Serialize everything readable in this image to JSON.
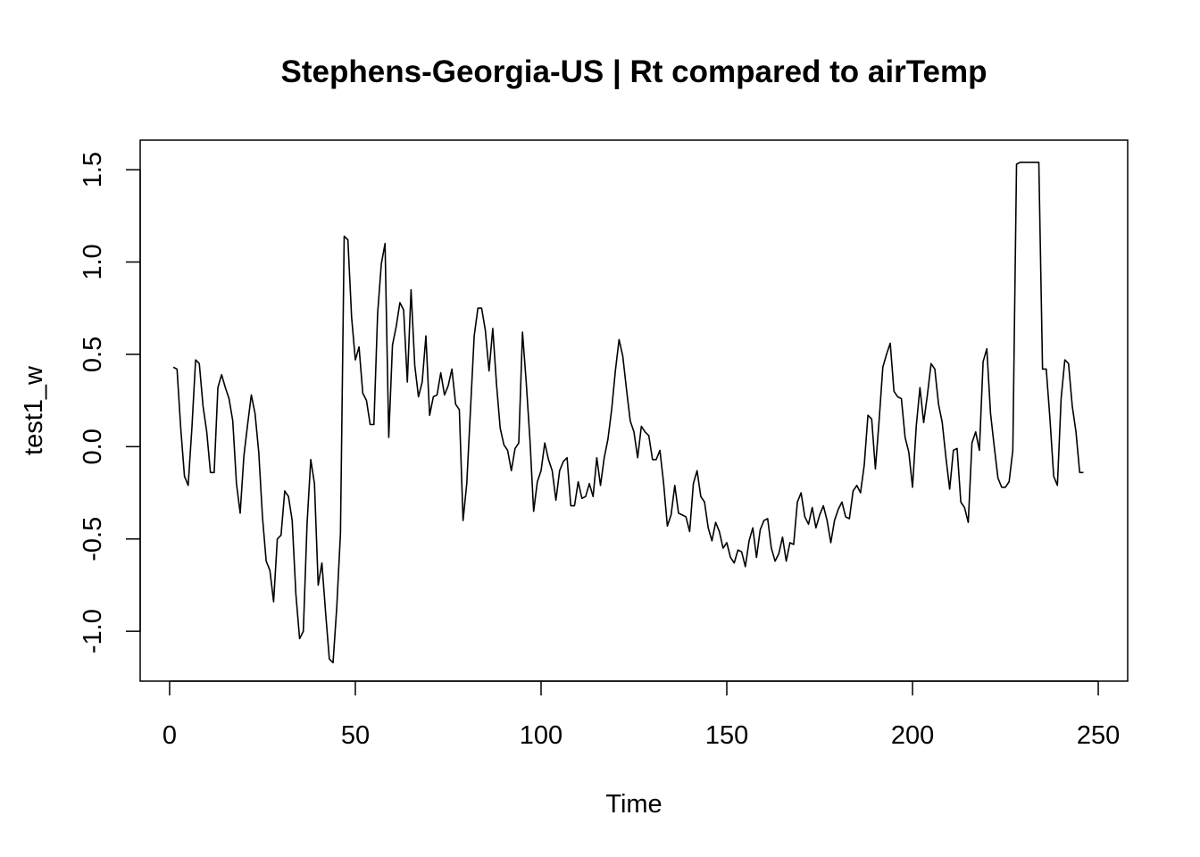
{
  "chart_data": {
    "type": "line",
    "title": "Stephens-Georgia-US | Rt compared to airTemp",
    "xlabel": "Time",
    "ylabel": "test1_w",
    "xlim": [
      -7.92,
      257.92
    ],
    "ylim": [
      -1.27,
      1.66
    ],
    "x_ticks": [
      0,
      50,
      100,
      150,
      200,
      250
    ],
    "x_tick_labels": [
      "0",
      "50",
      "100",
      "150",
      "200",
      "250"
    ],
    "y_ticks": [
      -1.0,
      -0.5,
      0.0,
      0.5,
      1.0,
      1.5
    ],
    "y_tick_labels": [
      "-1.0",
      "-0.5",
      "0.0",
      "0.5",
      "1.0",
      "1.5"
    ],
    "grid": false,
    "legend": "none",
    "line_color": "#000000",
    "series": [
      {
        "x_start": 1,
        "values": [
          0.43,
          0.42,
          0.1,
          -0.16,
          -0.21,
          0.1,
          0.47,
          0.45,
          0.22,
          0.08,
          -0.14,
          -0.14,
          0.32,
          0.39,
          0.32,
          0.26,
          0.14,
          -0.2,
          -0.36,
          -0.05,
          0.12,
          0.28,
          0.18,
          -0.03,
          -0.38,
          -0.62,
          -0.67,
          -0.84,
          -0.5,
          -0.48,
          -0.24,
          -0.27,
          -0.4,
          -0.8,
          -1.04,
          -1.0,
          -0.42,
          -0.07,
          -0.2,
          -0.75,
          -0.63,
          -0.9,
          -1.15,
          -1.17,
          -0.87,
          -0.47,
          1.14,
          1.12,
          0.7,
          0.47,
          0.54,
          0.29,
          0.25,
          0.12,
          0.12,
          0.72,
          0.99,
          1.1,
          0.05,
          0.55,
          0.65,
          0.78,
          0.74,
          0.35,
          0.85,
          0.44,
          0.27,
          0.35,
          0.6,
          0.17,
          0.27,
          0.28,
          0.4,
          0.28,
          0.33,
          0.42,
          0.23,
          0.2,
          -0.4,
          -0.2,
          0.2,
          0.6,
          0.75,
          0.75,
          0.63,
          0.41,
          0.64,
          0.34,
          0.1,
          0.01,
          -0.02,
          -0.13,
          -0.01,
          0.02,
          0.62,
          0.35,
          0.04,
          -0.35,
          -0.19,
          -0.13,
          0.02,
          -0.07,
          -0.13,
          -0.29,
          -0.13,
          -0.08,
          -0.06,
          -0.32,
          -0.32,
          -0.19,
          -0.28,
          -0.27,
          -0.2,
          -0.27,
          -0.06,
          -0.21,
          -0.06,
          0.04,
          0.2,
          0.41,
          0.58,
          0.49,
          0.31,
          0.14,
          0.08,
          -0.06,
          0.11,
          0.08,
          0.06,
          -0.07,
          -0.07,
          -0.02,
          -0.2,
          -0.43,
          -0.37,
          -0.21,
          -0.36,
          -0.37,
          -0.38,
          -0.46,
          -0.2,
          -0.13,
          -0.27,
          -0.3,
          -0.44,
          -0.51,
          -0.41,
          -0.46,
          -0.55,
          -0.52,
          -0.6,
          -0.63,
          -0.56,
          -0.57,
          -0.65,
          -0.51,
          -0.44,
          -0.6,
          -0.45,
          -0.4,
          -0.39,
          -0.55,
          -0.62,
          -0.58,
          -0.49,
          -0.62,
          -0.52,
          -0.53,
          -0.3,
          -0.25,
          -0.38,
          -0.42,
          -0.33,
          -0.44,
          -0.37,
          -0.32,
          -0.4,
          -0.52,
          -0.4,
          -0.34,
          -0.3,
          -0.38,
          -0.39,
          -0.24,
          -0.21,
          -0.25,
          -0.1,
          0.17,
          0.15,
          -0.12,
          0.14,
          0.43,
          0.5,
          0.56,
          0.3,
          0.27,
          0.26,
          0.05,
          -0.03,
          -0.22,
          0.11,
          0.32,
          0.13,
          0.28,
          0.45,
          0.42,
          0.23,
          0.13,
          -0.06,
          -0.23,
          -0.02,
          -0.01,
          -0.3,
          -0.33,
          -0.41,
          0.02,
          0.08,
          -0.02,
          0.46,
          0.53,
          0.18,
          0.0,
          -0.17,
          -0.22,
          -0.22,
          -0.19,
          -0.02,
          1.53,
          1.54,
          1.54,
          1.54,
          1.54,
          1.54,
          1.54,
          0.42,
          0.42,
          0.15,
          -0.16,
          -0.21,
          0.26,
          0.47,
          0.45,
          0.22,
          0.08,
          -0.14,
          -0.14
        ]
      }
    ]
  }
}
